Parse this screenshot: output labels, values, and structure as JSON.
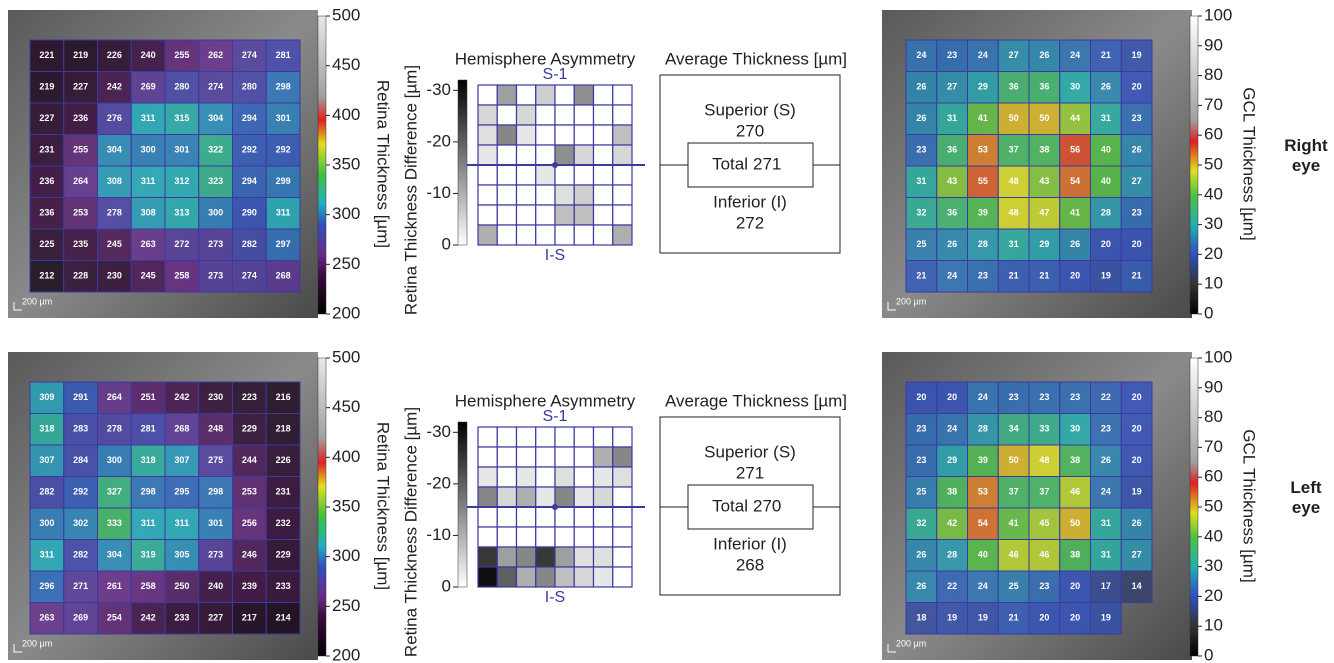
{
  "panels": [
    {
      "eye": "Right eye",
      "retina": {
        "axis_label": "Retina Thickness [µm]",
        "scale_label": "200 µm",
        "lim": [
          200,
          500
        ],
        "ticks": [
          200,
          250,
          300,
          350,
          400,
          450,
          500
        ],
        "grid": [
          [
            221,
            219,
            226,
            240,
            255,
            262,
            274,
            281
          ],
          [
            219,
            227,
            242,
            269,
            280,
            274,
            280,
            298
          ],
          [
            227,
            236,
            276,
            311,
            315,
            304,
            294,
            301
          ],
          [
            231,
            255,
            304,
            300,
            301,
            322,
            292,
            292
          ],
          [
            236,
            264,
            308,
            311,
            312,
            323,
            294,
            299
          ],
          [
            236,
            253,
            278,
            308,
            313,
            300,
            290,
            311
          ],
          [
            225,
            235,
            245,
            263,
            272,
            273,
            282,
            297
          ],
          [
            212,
            228,
            230,
            245,
            258,
            273,
            274,
            268
          ]
        ]
      },
      "asymmetry": {
        "title": "Hemisphere Asymmetry",
        "axis_label": "Retina Thickness Difference [µm]",
        "top_label": "S-1",
        "bottom_label": "I-S",
        "lim": [
          0,
          -32
        ],
        "ticks": [
          -30,
          -20,
          -10,
          0
        ],
        "cells": [
          [
            0,
            -12,
            0,
            -6,
            0,
            -14,
            0,
            0
          ],
          [
            -5,
            0,
            -5,
            0,
            0,
            0,
            0,
            0
          ],
          [
            -4,
            -15,
            -3,
            0,
            0,
            0,
            0,
            -8
          ],
          [
            -3,
            0,
            0,
            0,
            -14,
            -5,
            0,
            -5
          ],
          [
            0,
            0,
            0,
            -3,
            0,
            0,
            0,
            0
          ],
          [
            0,
            0,
            0,
            0,
            -4,
            -6,
            0,
            0
          ],
          [
            0,
            0,
            0,
            0,
            -8,
            -8,
            0,
            0
          ],
          [
            -10,
            0,
            0,
            0,
            0,
            0,
            0,
            -10
          ]
        ]
      },
      "average": {
        "title": "Average Thickness [µm]",
        "superior_label": "Superior (S)",
        "superior": 270,
        "total_label": "Total",
        "total": 271,
        "inferior_label": "Inferior (I)",
        "inferior": 272
      },
      "gcl": {
        "axis_label": "GCL Thickness [µm]",
        "scale_label": "200 µm",
        "lim": [
          0,
          100
        ],
        "ticks": [
          0,
          10,
          20,
          30,
          40,
          50,
          60,
          70,
          80,
          90,
          100
        ],
        "grid": [
          [
            24,
            23,
            24,
            27,
            26,
            24,
            21,
            19
          ],
          [
            26,
            27,
            29,
            36,
            36,
            30,
            26,
            20
          ],
          [
            26,
            31,
            41,
            50,
            50,
            44,
            31,
            23
          ],
          [
            23,
            36,
            53,
            37,
            38,
            56,
            40,
            26
          ],
          [
            31,
            43,
            55,
            48,
            43,
            54,
            40,
            27
          ],
          [
            32,
            36,
            39,
            48,
            47,
            41,
            28,
            23
          ],
          [
            25,
            26,
            28,
            31,
            29,
            26,
            20,
            20
          ],
          [
            21,
            24,
            23,
            21,
            21,
            20,
            19,
            21
          ]
        ]
      }
    },
    {
      "eye": "Left eye",
      "retina": {
        "axis_label": "Retina Thickness [µm]",
        "scale_label": "200 µm",
        "lim": [
          200,
          500
        ],
        "ticks": [
          200,
          250,
          300,
          350,
          400,
          450,
          500
        ],
        "grid": [
          [
            309,
            291,
            264,
            251,
            242,
            230,
            223,
            216
          ],
          [
            318,
            283,
            278,
            281,
            268,
            248,
            229,
            218
          ],
          [
            307,
            284,
            300,
            318,
            307,
            275,
            244,
            226
          ],
          [
            282,
            292,
            327,
            298,
            295,
            298,
            253,
            231
          ],
          [
            300,
            302,
            333,
            311,
            311,
            301,
            256,
            232
          ],
          [
            311,
            282,
            304,
            319,
            305,
            273,
            246,
            229
          ],
          [
            296,
            271,
            261,
            258,
            250,
            240,
            239,
            233
          ],
          [
            263,
            269,
            254,
            242,
            233,
            227,
            217,
            214
          ]
        ]
      },
      "asymmetry": {
        "title": "Hemisphere Asymmetry",
        "axis_label": "Retina Thickness Difference [µm]",
        "top_label": "S-1",
        "bottom_label": "I-S",
        "lim": [
          0,
          -32
        ],
        "ticks": [
          -30,
          -20,
          -10,
          0
        ],
        "cells": [
          [
            0,
            0,
            0,
            0,
            0,
            0,
            0,
            0
          ],
          [
            0,
            0,
            0,
            0,
            0,
            0,
            -10,
            -15
          ],
          [
            -3,
            0,
            -3,
            0,
            -4,
            0,
            -3,
            -4
          ],
          [
            -15,
            -5,
            -10,
            -3,
            -15,
            -3,
            -5,
            0
          ],
          [
            0,
            0,
            0,
            0,
            0,
            0,
            0,
            0
          ],
          [
            0,
            0,
            0,
            0,
            0,
            0,
            0,
            0
          ],
          [
            -25,
            -12,
            -15,
            -25,
            -12,
            -4,
            -4,
            0
          ],
          [
            -30,
            -20,
            -10,
            -15,
            -8,
            -5,
            -3,
            0
          ]
        ]
      },
      "average": {
        "title": "Average Thickness [µm]",
        "superior_label": "Superior (S)",
        "superior": 271,
        "total_label": "Total",
        "total": 270,
        "inferior_label": "Inferior (I)",
        "inferior": 268
      },
      "gcl": {
        "axis_label": "GCL Thickness [µm]",
        "scale_label": "200 µm",
        "lim": [
          0,
          100
        ],
        "ticks": [
          0,
          10,
          20,
          30,
          40,
          50,
          60,
          70,
          80,
          90,
          100
        ],
        "grid": [
          [
            20,
            20,
            24,
            23,
            23,
            23,
            22,
            20
          ],
          [
            23,
            24,
            28,
            34,
            33,
            30,
            23,
            20
          ],
          [
            23,
            29,
            39,
            50,
            48,
            38,
            26,
            20
          ],
          [
            25,
            38,
            53,
            37,
            37,
            46,
            24,
            19
          ],
          [
            32,
            42,
            54,
            41,
            45,
            50,
            31,
            26
          ],
          [
            26,
            28,
            40,
            46,
            46,
            38,
            31,
            27
          ],
          [
            26,
            22,
            24,
            25,
            23,
            20,
            17,
            14
          ],
          [
            18,
            19,
            19,
            21,
            20,
            20,
            19,
            null
          ]
        ]
      }
    }
  ]
}
